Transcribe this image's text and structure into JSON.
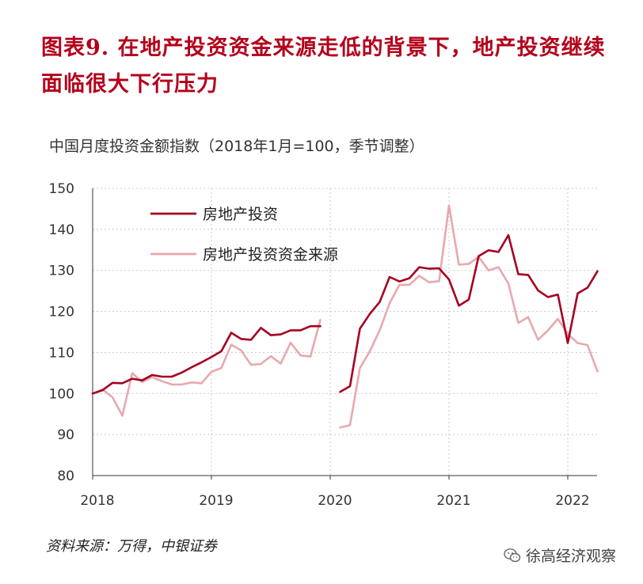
{
  "figure": {
    "title": "图表9. 在地产投资资金来源走低的背景下，地产投资继续面临很大下行压力",
    "subtitle": "中国月度投资金额指数（2018年1月=100，季节调整）",
    "source": "资料来源：万得，中银证券",
    "watermark": "徐高经济观察",
    "watermark_icon": "wechat-icon"
  },
  "colors": {
    "title": "#b3001b",
    "series_dark": "#a50021",
    "series_light": "#e8a9ac",
    "grid": "#c8c8c8"
  },
  "chart_data": {
    "type": "line",
    "x_tick_labels": [
      "2018",
      "2019",
      "2020",
      "2021",
      "2022"
    ],
    "y_tick_labels": [
      "150",
      "140",
      "130",
      "120",
      "110",
      "100",
      "90",
      "80"
    ],
    "ylim": [
      80,
      150
    ],
    "xlim": [
      "2018-01",
      "2022-04"
    ],
    "grid": true,
    "legend_position": "top-left",
    "x": [
      "2018-01",
      "2018-02",
      "2018-03",
      "2018-04",
      "2018-05",
      "2018-06",
      "2018-07",
      "2018-08",
      "2018-09",
      "2018-10",
      "2018-11",
      "2018-12",
      "2019-01",
      "2019-02",
      "2019-03",
      "2019-04",
      "2019-05",
      "2019-06",
      "2019-07",
      "2019-08",
      "2019-09",
      "2019-10",
      "2019-11",
      "2019-12",
      "2020-01",
      "2020-02",
      "2020-03",
      "2020-04",
      "2020-05",
      "2020-06",
      "2020-07",
      "2020-08",
      "2020-09",
      "2020-10",
      "2020-11",
      "2020-12",
      "2021-01",
      "2021-02",
      "2021-03",
      "2021-04",
      "2021-05",
      "2021-06",
      "2021-07",
      "2021-08",
      "2021-09",
      "2021-10",
      "2021-11",
      "2021-12",
      "2022-01",
      "2022-02",
      "2022-03",
      "2022-04"
    ],
    "series": [
      {
        "name": "房地产投资",
        "color": "#a50021",
        "values": [
          100,
          100.8,
          102.6,
          102.5,
          103.6,
          103.2,
          104.5,
          104.1,
          104.1,
          105.1,
          106.4,
          107.6,
          108.9,
          110.3,
          114.8,
          113.3,
          113.1,
          116.0,
          114.2,
          114.4,
          115.4,
          115.4,
          116.4,
          116.4,
          null,
          100.4,
          101.8,
          115.8,
          119.4,
          122.3,
          128.4,
          127.3,
          128.1,
          130.8,
          130.4,
          130.5,
          127.8,
          121.4,
          122.9,
          133.5,
          134.9,
          134.5,
          138.6,
          129.1,
          128.9,
          125.1,
          123.5,
          124.1,
          112.3,
          124.4,
          125.8,
          129.8
        ]
      },
      {
        "name": "房地产投资资金来源",
        "color": "#e8a9ac",
        "values": [
          100,
          101.0,
          99.1,
          94.6,
          105.0,
          102.8,
          104.0,
          103.0,
          102.2,
          102.2,
          102.7,
          102.5,
          105.3,
          106.2,
          111.9,
          110.5,
          107.0,
          107.2,
          109.1,
          107.3,
          112.4,
          109.3,
          109.0,
          117.9,
          null,
          91.7,
          92.3,
          106.2,
          110.3,
          115.4,
          122.0,
          126.5,
          126.5,
          128.7,
          127.1,
          127.4,
          145.8,
          131.4,
          131.6,
          133.3,
          130.0,
          130.8,
          126.8,
          117.2,
          118.6,
          113.1,
          115.4,
          118.2,
          114.5,
          112.3,
          111.8,
          105.4
        ]
      }
    ]
  }
}
